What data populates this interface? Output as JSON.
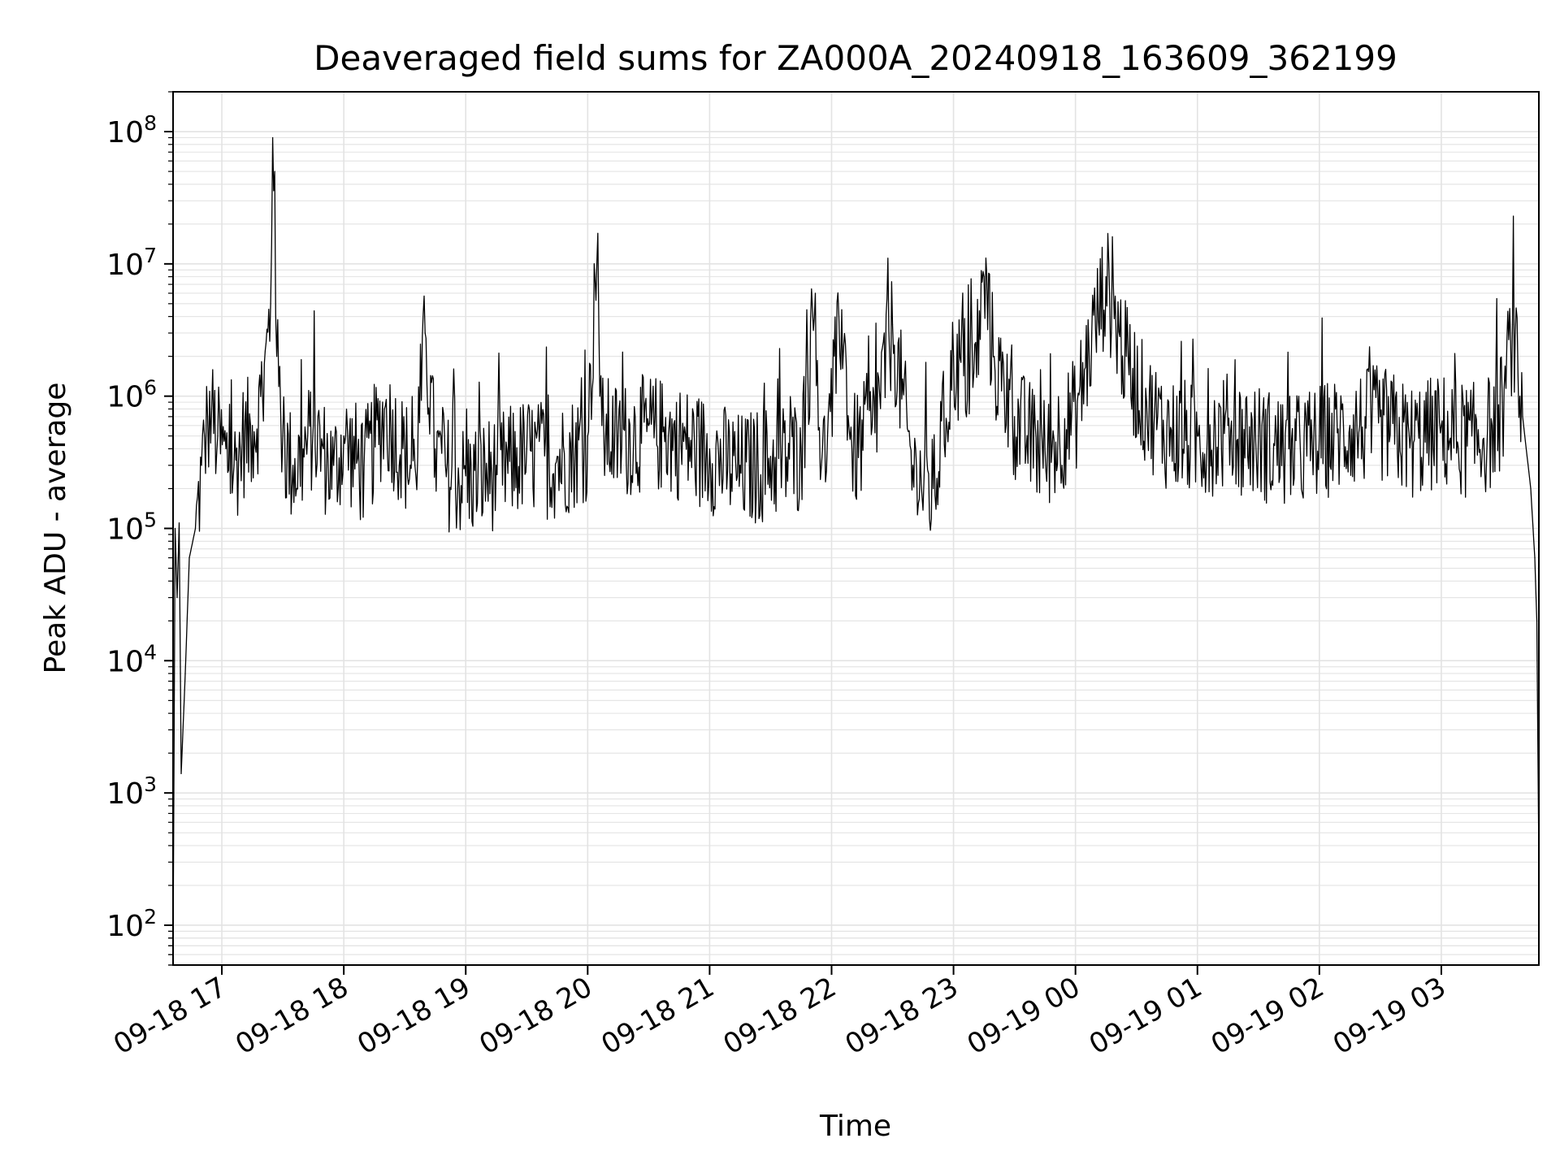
{
  "chart_data": {
    "type": "line",
    "title": "Deaveraged field sums for ZA000A_20240918_163609_362199",
    "xlabel": "Time",
    "ylabel": "Peak ADU - average",
    "yscale": "log",
    "grid": true,
    "legend": "none",
    "line_color": "#000000",
    "grid_color": "#e3e3e3",
    "xlim": [
      "2024-09-18T16:36",
      "2024-09-19T03:48"
    ],
    "ylim": [
      50,
      200000000
    ],
    "x_ticks": [
      {
        "label": "09-18 17",
        "time": "2024-09-18T17:00"
      },
      {
        "label": "09-18 18",
        "time": "2024-09-18T18:00"
      },
      {
        "label": "09-18 19",
        "time": "2024-09-18T19:00"
      },
      {
        "label": "09-18 20",
        "time": "2024-09-18T20:00"
      },
      {
        "label": "09-18 21",
        "time": "2024-09-18T21:00"
      },
      {
        "label": "09-18 22",
        "time": "2024-09-18T22:00"
      },
      {
        "label": "09-18 23",
        "time": "2024-09-18T23:00"
      },
      {
        "label": "09-19 00",
        "time": "2024-09-19T00:00"
      },
      {
        "label": "09-19 01",
        "time": "2024-09-19T01:00"
      },
      {
        "label": "09-19 02",
        "time": "2024-09-19T02:00"
      },
      {
        "label": "09-19 03",
        "time": "2024-09-19T03:00"
      }
    ],
    "y_ticks": [
      {
        "base": "10",
        "exp": "2",
        "value": 100
      },
      {
        "base": "10",
        "exp": "3",
        "value": 1000
      },
      {
        "base": "10",
        "exp": "4",
        "value": 10000
      },
      {
        "base": "10",
        "exp": "5",
        "value": 100000
      },
      {
        "base": "10",
        "exp": "6",
        "value": 1000000
      },
      {
        "base": "10",
        "exp": "7",
        "value": 10000000
      },
      {
        "base": "10",
        "exp": "8",
        "value": 100000000
      }
    ],
    "series": [
      {
        "x": [
          "2024-09-18T16:36",
          "2024-09-18T16:37",
          "2024-09-18T16:38",
          "2024-09-18T16:39",
          "2024-09-18T16:40",
          "2024-09-18T16:42",
          "2024-09-18T16:44",
          "2024-09-18T16:47",
          "2024-09-18T16:50",
          "2024-09-18T16:53",
          "2024-09-18T16:55",
          "2024-09-18T16:58",
          "2024-09-18T17:02",
          "2024-09-18T17:06",
          "2024-09-18T17:10",
          "2024-09-18T17:15",
          "2024-09-18T17:20",
          "2024-09-18T17:24",
          "2024-09-18T17:25",
          "2024-09-18T17:26",
          "2024-09-18T17:27",
          "2024-09-18T17:30",
          "2024-09-18T17:35",
          "2024-09-18T17:40",
          "2024-09-18T17:45",
          "2024-09-18T17:50",
          "2024-09-18T17:55",
          "2024-09-18T18:00",
          "2024-09-18T18:10",
          "2024-09-18T18:20",
          "2024-09-18T18:30",
          "2024-09-18T18:35",
          "2024-09-18T18:40",
          "2024-09-18T18:45",
          "2024-09-18T18:50",
          "2024-09-18T19:00",
          "2024-09-18T19:15",
          "2024-09-18T19:30",
          "2024-09-18T19:45",
          "2024-09-18T20:00",
          "2024-09-18T20:05",
          "2024-09-18T20:06",
          "2024-09-18T20:07",
          "2024-09-18T20:15",
          "2024-09-18T20:30",
          "2024-09-18T20:45",
          "2024-09-18T21:00",
          "2024-09-18T21:15",
          "2024-09-18T21:30",
          "2024-09-18T21:45",
          "2024-09-18T21:52",
          "2024-09-18T21:55",
          "2024-09-18T21:58",
          "2024-09-18T22:05",
          "2024-09-18T22:10",
          "2024-09-18T22:20",
          "2024-09-18T22:30",
          "2024-09-18T22:40",
          "2024-09-18T22:50",
          "2024-09-18T23:00",
          "2024-09-18T23:10",
          "2024-09-18T23:15",
          "2024-09-18T23:20",
          "2024-09-18T23:30",
          "2024-09-18T23:45",
          "2024-09-19T00:00",
          "2024-09-19T00:08",
          "2024-09-19T00:15",
          "2024-09-19T00:25",
          "2024-09-19T00:35",
          "2024-09-19T00:45",
          "2024-09-19T01:00",
          "2024-09-19T01:15",
          "2024-09-19T01:30",
          "2024-09-19T01:45",
          "2024-09-19T02:00",
          "2024-09-19T02:15",
          "2024-09-19T02:30",
          "2024-09-19T02:45",
          "2024-09-19T03:00",
          "2024-09-19T03:15",
          "2024-09-19T03:25",
          "2024-09-19T03:30",
          "2024-09-19T03:35",
          "2024-09-19T03:40",
          "2024-09-19T03:44",
          "2024-09-19T03:46",
          "2024-09-19T03:47",
          "2024-09-19T03:48"
        ],
        "y": [
          60,
          100000,
          30000,
          110000,
          1400,
          8000,
          60000,
          100000,
          300000,
          700000,
          800000,
          500000,
          400000,
          300000,
          500000,
          600000,
          1000000,
          5000000,
          90000000,
          50000000,
          2000000,
          500000,
          300000,
          400000,
          600000,
          400000,
          300000,
          500000,
          300000,
          800000,
          400000,
          300000,
          3000000,
          400000,
          300000,
          250000,
          300000,
          400000,
          350000,
          500000,
          17000000,
          1000000,
          600000,
          500000,
          600000,
          500000,
          400000,
          300000,
          350000,
          400000,
          6000000,
          300000,
          500000,
          4500000,
          400000,
          600000,
          3500000,
          300000,
          200000,
          2000000,
          1500000,
          8000000,
          2000000,
          700000,
          400000,
          800000,
          3000000,
          8000000,
          2000000,
          900000,
          600000,
          500000,
          600000,
          500000,
          400000,
          500000,
          600000,
          700000,
          500000,
          600000,
          500000,
          600000,
          900000,
          3500000,
          700000,
          200000,
          60000,
          20000,
          300
        ]
      }
    ]
  }
}
